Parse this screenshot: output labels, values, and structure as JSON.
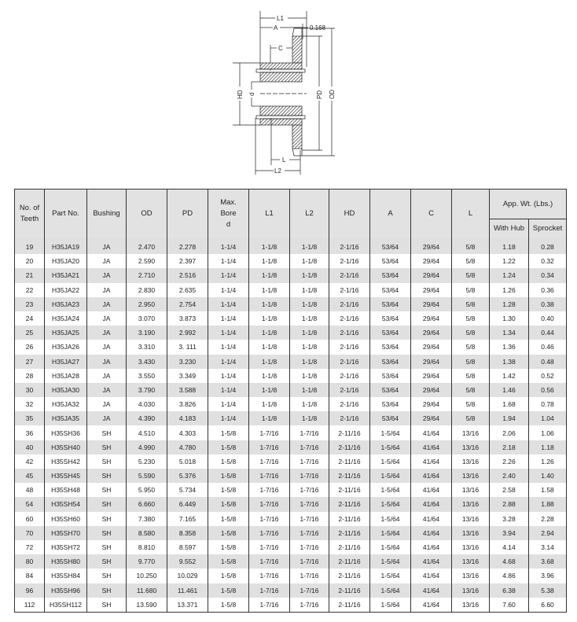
{
  "diagram": {
    "labels": {
      "L1": "L1",
      "A": "A",
      "offset": "0.168",
      "C": "C",
      "HD": "HD",
      "d": "d",
      "PD": "PD",
      "OD": "OD",
      "L": "L",
      "L2": "L2"
    }
  },
  "table": {
    "headers": [
      "No. of Teeth",
      "Part No.",
      "Bushing",
      "OD",
      "PD",
      "Max. Bore d",
      "L1",
      "L2",
      "HD",
      "A",
      "C",
      "L"
    ],
    "group_header": "App. Wt. (Lbs.)",
    "sub_headers": [
      "With Hub",
      "Sprocket"
    ],
    "rows": [
      [
        "19",
        "H35JA19",
        "JA",
        "2.470",
        "2.278",
        "1-1/4",
        "1-1/8",
        "1-1/8",
        "2-1/16",
        "53/64",
        "29/64",
        "5/8",
        "1.18",
        "0.28"
      ],
      [
        "20",
        "H35JA20",
        "JA",
        "2.590",
        "2.397",
        "1-1/4",
        "1-1/8",
        "1-1/8",
        "2-1/16",
        "53/64",
        "29/64",
        "5/8",
        "1.22",
        "0.32"
      ],
      [
        "21",
        "H35JA21",
        "JA",
        "2.710",
        "2.516",
        "1-1/4",
        "1-1/8",
        "1-1/8",
        "2-1/16",
        "53/64",
        "29/64",
        "5/8",
        "1.24",
        "0.34"
      ],
      [
        "22",
        "H35JA22",
        "JA",
        "2.830",
        "2.635",
        "1-1/4",
        "1-1/8",
        "1-1/8",
        "2-1/16",
        "53/64",
        "29/64",
        "5/8",
        "1.26",
        "0.36"
      ],
      [
        "23",
        "H35JA23",
        "JA",
        "2.950",
        "2.754",
        "1-1/4",
        "1-1/8",
        "1-1/8",
        "2-1/16",
        "53/64",
        "29/64",
        "5/8",
        "1.28",
        "0.38"
      ],
      [
        "24",
        "H35JA24",
        "JA",
        "3.070",
        "3.873",
        "1-1/4",
        "1-1/8",
        "1-1/8",
        "2-1/16",
        "53/64",
        "29/64",
        "5/8",
        "1.30",
        "0.40"
      ],
      [
        "25",
        "H35JA25",
        "JA",
        "3.190",
        "2.992",
        "1-1/4",
        "1-1/8",
        "1-1/8",
        "2-1/16",
        "53/64",
        "29/64",
        "5/8",
        "1.34",
        "0.44"
      ],
      [
        "26",
        "H35JA26",
        "JA",
        "3.310",
        "3. 111",
        "1-1/4",
        "1-1/8",
        "1-1/8",
        "2-1/16",
        "53/64",
        "29/64",
        "5/8",
        "1.36",
        "0.46"
      ],
      [
        "27",
        "H35JA27",
        "JA",
        "3.430",
        "3.230",
        "1-1/4",
        "1-1/8",
        "1-1/8",
        "2-1/16",
        "53/64",
        "29/64",
        "5/8",
        "1.38",
        "0.48"
      ],
      [
        "28",
        "H35JA28",
        "JA",
        "3.550",
        "3.349",
        "1-1/4",
        "1-1/8",
        "1-1/8",
        "2-1/16",
        "53/64",
        "29/64",
        "5/8",
        "1.42",
        "0.52"
      ],
      [
        "30",
        "H35JA30",
        "JA",
        "3.790",
        "3.588",
        "1-1/4",
        "1-1/8",
        "1-1/8",
        "2-1/16",
        "53/64",
        "29/64",
        "5/8",
        "1.46",
        "0.56"
      ],
      [
        "32",
        "H35JA32",
        "JA",
        "4.030",
        "3.826",
        "1-1/4",
        "1-1/8",
        "1-1/8",
        "2-1/16",
        "53/64",
        "29/64",
        "5/8",
        "1.68",
        "0.78"
      ],
      [
        "35",
        "H35JA35",
        "JA",
        "4.390",
        "4.183",
        "1-1/4",
        "1-1/8",
        "1-1/8",
        "2-1/16",
        "53/64",
        "29/64",
        "5/8",
        "1.94",
        "1.04"
      ],
      [
        "36",
        "H35SH36",
        "SH",
        "4.510",
        "4.303",
        "1-5/8",
        "1-7/16",
        "1-7/16",
        "2-11/16",
        "1-5/64",
        "41/64",
        "13/16",
        "2.06",
        "1.06"
      ],
      [
        "40",
        "H35SH40",
        "SH",
        "4.990",
        "4.780",
        "1-5/8",
        "1-7/16",
        "1-7/16",
        "2-11/16",
        "1-5/64",
        "41/64",
        "13/16",
        "2.18",
        "1.18"
      ],
      [
        "42",
        "H35SH42",
        "SH",
        "5.230",
        "5.018",
        "1-5/8",
        "1-7/16",
        "1-7/16",
        "2-11/16",
        "1-5/64",
        "41/64",
        "13/16",
        "2.26",
        "1.26"
      ],
      [
        "45",
        "H35SH45",
        "SH",
        "5.590",
        "5.376",
        "1-5/8",
        "1-7/16",
        "1-7/16",
        "2-11/16",
        "1-5/64",
        "41/64",
        "13/16",
        "2.40",
        "1.40"
      ],
      [
        "48",
        "H35SH48",
        "SH",
        "5.950",
        "5.734",
        "1-5/8",
        "1-7/16",
        "1-7/16",
        "2-11/16",
        "1-5/64",
        "41/64",
        "13/16",
        "2.58",
        "1.58"
      ],
      [
        "54",
        "H35SH54",
        "SH",
        "6.660",
        "6.449",
        "1-5/8",
        "1-7/16",
        "1-7/16",
        "2-11/16",
        "1-5/64",
        "41/64",
        "13/16",
        "2.88",
        "1.88"
      ],
      [
        "60",
        "H35SH60",
        "SH",
        "7.380",
        "7.165",
        "1-5/8",
        "1-7/16",
        "1-7/16",
        "2-11/16",
        "1-5/64",
        "41/64",
        "13/16",
        "3.28",
        "2.28"
      ],
      [
        "70",
        "H35SH70",
        "SH",
        "8.580",
        "8.358",
        "1-5/8",
        "1-7/16",
        "1-7/16",
        "2-11/16",
        "1-5/64",
        "41/64",
        "13/16",
        "3.94",
        "2.94"
      ],
      [
        "72",
        "H35SH72",
        "SH",
        "8.810",
        "8.597",
        "1-5/8",
        "1-7/16",
        "1-7/16",
        "2-11/16",
        "1-5/64",
        "41/64",
        "13/16",
        "4.14",
        "3.14"
      ],
      [
        "80",
        "H35SH80",
        "SH",
        "9.770",
        "9.552",
        "1-5/8",
        "1-7/16",
        "1-7/16",
        "2-11/16",
        "1-5/64",
        "41/64",
        "13/16",
        "4.68",
        "3.68"
      ],
      [
        "84",
        "H35SH84",
        "SH",
        "10.250",
        "10.029",
        "1-5/8",
        "1-7/16",
        "1-7/16",
        "2-11/16",
        "1-5/64",
        "41/64",
        "13/16",
        "4.86",
        "3.96"
      ],
      [
        "96",
        "H35SH96",
        "SH",
        "11.680",
        "11.461",
        "1-5/8",
        "1-7/16",
        "1-7/16",
        "2-11/16",
        "1-5/64",
        "41/64",
        "13/16",
        "6.38",
        "5.38"
      ],
      [
        "112",
        "H35SH112",
        "SH",
        "13.590",
        "13.371",
        "1-5/8",
        "1-7/16",
        "1-7/16",
        "2-11/16",
        "1-5/64",
        "41/64",
        "13/16",
        "7.60",
        "6.60"
      ]
    ]
  }
}
